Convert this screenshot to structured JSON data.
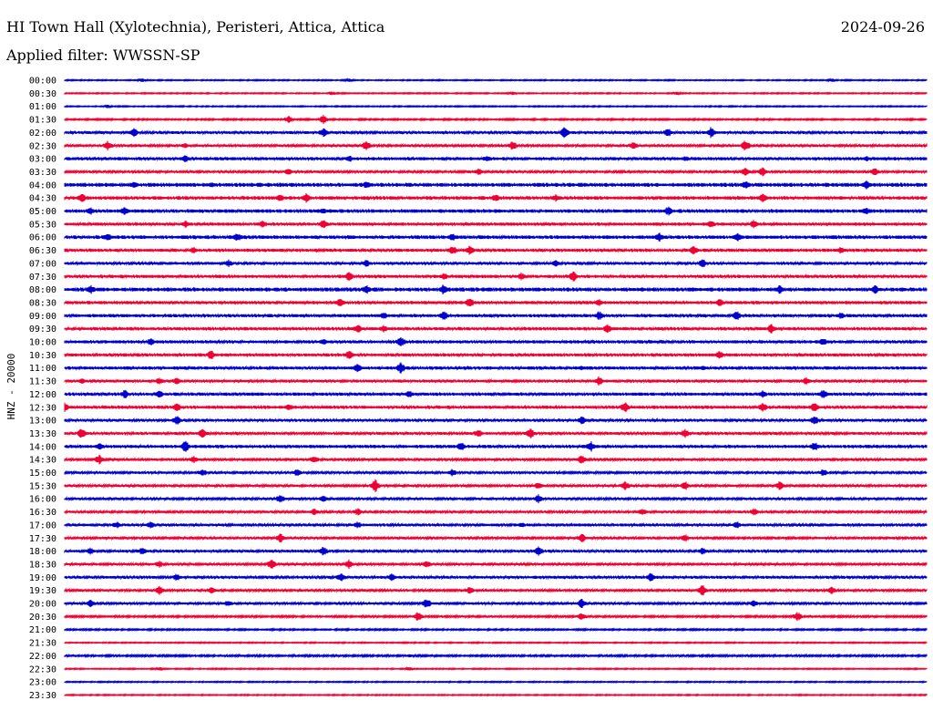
{
  "header": {
    "station": "HI Town Hall (Xylotechnia), Peristeri, Attica, Attica",
    "date": "2024-09-26",
    "filter": "Applied filter: WWSSN-SP"
  },
  "colors": {
    "even_row": "#0000cc",
    "odd_row": "#ee0033",
    "text": "#000000"
  },
  "chart_data": {
    "type": "line",
    "title": "HI Town Hall (Xylotechnia), Peristeri, Attica, Attica",
    "ylabel": "HNZ - 20000",
    "row_labels": [
      "00:00",
      "00:30",
      "01:00",
      "01:30",
      "02:00",
      "02:30",
      "03:00",
      "03:30",
      "04:00",
      "04:30",
      "05:00",
      "05:30",
      "06:00",
      "06:30",
      "07:00",
      "07:30",
      "08:00",
      "08:30",
      "09:00",
      "09:30",
      "10:00",
      "10:30",
      "11:00",
      "11:30",
      "12:00",
      "12:30",
      "13:00",
      "13:30",
      "14:00",
      "14:30",
      "15:00",
      "15:30",
      "16:00",
      "16:30",
      "17:00",
      "17:30",
      "18:00",
      "18:30",
      "19:00",
      "19:30",
      "20:00",
      "20:30",
      "21:00",
      "21:30",
      "22:00",
      "22:30",
      "23:00",
      "23:30"
    ],
    "noise_levels": [
      0.3,
      0.3,
      0.3,
      0.4,
      0.7,
      0.6,
      0.8,
      0.6,
      1.0,
      0.9,
      0.9,
      0.8,
      0.9,
      0.8,
      0.7,
      0.8,
      1.0,
      0.8,
      0.8,
      0.8,
      0.8,
      0.8,
      0.8,
      0.7,
      0.8,
      0.8,
      0.7,
      0.7,
      0.8,
      0.6,
      0.6,
      0.6,
      0.6,
      0.6,
      0.7,
      0.6,
      0.7,
      0.6,
      0.7,
      0.6,
      0.6,
      0.5,
      0.4,
      0.3,
      0.5,
      0.3,
      0.3,
      0.3
    ],
    "spikes": [
      [
        [
          0.09,
          2
        ],
        [
          0.33,
          2
        ],
        [
          0.89,
          2
        ]
      ],
      [
        [
          0.31,
          2
        ],
        [
          0.52,
          2
        ],
        [
          0.71,
          2
        ]
      ],
      [
        [
          0.05,
          2
        ]
      ],
      [
        [
          0.26,
          4
        ],
        [
          0.3,
          5
        ]
      ],
      [
        [
          0.08,
          5
        ],
        [
          0.3,
          5
        ],
        [
          0.58,
          6
        ],
        [
          0.7,
          5
        ],
        [
          0.75,
          6
        ]
      ],
      [
        [
          0.05,
          5
        ],
        [
          0.14,
          3
        ],
        [
          0.35,
          6
        ],
        [
          0.52,
          5
        ],
        [
          0.66,
          4
        ],
        [
          0.79,
          6
        ]
      ],
      [
        [
          0.14,
          4
        ],
        [
          0.33,
          4
        ],
        [
          0.49,
          4
        ],
        [
          0.72,
          3
        ],
        [
          0.93,
          3
        ]
      ],
      [
        [
          0.26,
          4
        ],
        [
          0.48,
          4
        ],
        [
          0.79,
          5
        ],
        [
          0.81,
          5
        ],
        [
          0.94,
          4
        ]
      ],
      [
        [
          0.08,
          4
        ],
        [
          0.17,
          3
        ],
        [
          0.35,
          4
        ],
        [
          0.79,
          5
        ],
        [
          0.93,
          5
        ]
      ],
      [
        [
          0.02,
          5
        ],
        [
          0.25,
          4
        ],
        [
          0.28,
          5
        ],
        [
          0.5,
          4
        ],
        [
          0.57,
          4
        ],
        [
          0.81,
          5
        ]
      ],
      [
        [
          0.03,
          4
        ],
        [
          0.07,
          5
        ],
        [
          0.3,
          3
        ],
        [
          0.7,
          5
        ],
        [
          0.93,
          4
        ]
      ],
      [
        [
          0.14,
          4
        ],
        [
          0.23,
          4
        ],
        [
          0.3,
          5
        ],
        [
          0.75,
          4
        ],
        [
          0.8,
          5
        ]
      ],
      [
        [
          0.05,
          5
        ],
        [
          0.2,
          5
        ],
        [
          0.45,
          4
        ],
        [
          0.69,
          5
        ],
        [
          0.78,
          5
        ]
      ],
      [
        [
          0.15,
          4
        ],
        [
          0.45,
          5
        ],
        [
          0.47,
          5
        ],
        [
          0.73,
          5
        ],
        [
          0.9,
          4
        ]
      ],
      [
        [
          0.19,
          4
        ],
        [
          0.35,
          4
        ],
        [
          0.57,
          4
        ],
        [
          0.74,
          5
        ]
      ],
      [
        [
          0.33,
          5
        ],
        [
          0.44,
          4
        ],
        [
          0.53,
          4
        ],
        [
          0.59,
          6
        ]
      ],
      [
        [
          0.03,
          5
        ],
        [
          0.35,
          5
        ],
        [
          0.44,
          6
        ],
        [
          0.83,
          5
        ],
        [
          0.94,
          5
        ]
      ],
      [
        [
          0.32,
          5
        ],
        [
          0.47,
          6
        ],
        [
          0.62,
          4
        ],
        [
          0.76,
          4
        ]
      ],
      [
        [
          0.37,
          4
        ],
        [
          0.44,
          5
        ],
        [
          0.62,
          5
        ],
        [
          0.78,
          5
        ],
        [
          0.9,
          4
        ]
      ],
      [
        [
          0.34,
          5
        ],
        [
          0.37,
          4
        ],
        [
          0.63,
          5
        ],
        [
          0.82,
          5
        ]
      ],
      [
        [
          0.1,
          4
        ],
        [
          0.3,
          4
        ],
        [
          0.39,
          6
        ],
        [
          0.88,
          5
        ]
      ],
      [
        [
          0.17,
          5
        ],
        [
          0.33,
          5
        ],
        [
          0.76,
          5
        ]
      ],
      [
        [
          0.34,
          5
        ],
        [
          0.39,
          6
        ],
        [
          0.6,
          3
        ],
        [
          0.74,
          3
        ]
      ],
      [
        [
          0.02,
          3
        ],
        [
          0.11,
          4
        ],
        [
          0.13,
          4
        ],
        [
          0.62,
          5
        ],
        [
          0.86,
          4
        ]
      ],
      [
        [
          0.07,
          5
        ],
        [
          0.11,
          4
        ],
        [
          0.4,
          4
        ],
        [
          0.81,
          4
        ],
        [
          0.88,
          5
        ]
      ],
      [
        [
          0.0,
          6
        ],
        [
          0.13,
          5
        ],
        [
          0.26,
          4
        ],
        [
          0.65,
          6
        ],
        [
          0.81,
          5
        ],
        [
          0.87,
          5
        ]
      ],
      [
        [
          0.13,
          5
        ],
        [
          0.6,
          5
        ],
        [
          0.87,
          5
        ]
      ],
      [
        [
          0.02,
          6
        ],
        [
          0.16,
          5
        ],
        [
          0.48,
          5
        ],
        [
          0.54,
          6
        ],
        [
          0.72,
          5
        ]
      ],
      [
        [
          0.04,
          4
        ],
        [
          0.14,
          6
        ],
        [
          0.46,
          5
        ],
        [
          0.61,
          6
        ],
        [
          0.87,
          5
        ]
      ],
      [
        [
          0.04,
          5
        ],
        [
          0.15,
          4
        ],
        [
          0.29,
          4
        ],
        [
          0.6,
          5
        ]
      ],
      [
        [
          0.16,
          4
        ],
        [
          0.27,
          4
        ],
        [
          0.45,
          4
        ],
        [
          0.88,
          4
        ]
      ],
      [
        [
          0.36,
          7
        ],
        [
          0.55,
          4
        ],
        [
          0.65,
          5
        ],
        [
          0.72,
          5
        ],
        [
          0.83,
          5
        ]
      ],
      [
        [
          0.25,
          5
        ],
        [
          0.3,
          4
        ],
        [
          0.55,
          5
        ]
      ],
      [
        [
          0.29,
          4
        ],
        [
          0.34,
          4
        ],
        [
          0.67,
          4
        ],
        [
          0.8,
          4
        ]
      ],
      [
        [
          0.06,
          4
        ],
        [
          0.1,
          4
        ],
        [
          0.34,
          4
        ],
        [
          0.53,
          3
        ],
        [
          0.78,
          4
        ]
      ],
      [
        [
          0.25,
          5
        ],
        [
          0.6,
          5
        ],
        [
          0.72,
          4
        ]
      ],
      [
        [
          0.03,
          4
        ],
        [
          0.09,
          4
        ],
        [
          0.3,
          5
        ],
        [
          0.55,
          5
        ],
        [
          0.74,
          4
        ]
      ],
      [
        [
          0.11,
          4
        ],
        [
          0.24,
          5
        ],
        [
          0.33,
          5
        ],
        [
          0.42,
          4
        ]
      ],
      [
        [
          0.13,
          4
        ],
        [
          0.32,
          5
        ],
        [
          0.38,
          4
        ],
        [
          0.68,
          5
        ]
      ],
      [
        [
          0.11,
          5
        ],
        [
          0.17,
          4
        ],
        [
          0.47,
          4
        ],
        [
          0.74,
          6
        ],
        [
          0.89,
          4
        ]
      ],
      [
        [
          0.03,
          4
        ],
        [
          0.19,
          4
        ],
        [
          0.42,
          6
        ],
        [
          0.6,
          5
        ],
        [
          0.8,
          4
        ]
      ],
      [
        [
          0.41,
          5
        ],
        [
          0.6,
          4
        ],
        [
          0.85,
          5
        ]
      ],
      [],
      [],
      [
        [
          0.4,
          2
        ]
      ],
      [
        [
          0.11,
          2
        ],
        [
          0.4,
          2
        ]
      ],
      [],
      []
    ]
  }
}
